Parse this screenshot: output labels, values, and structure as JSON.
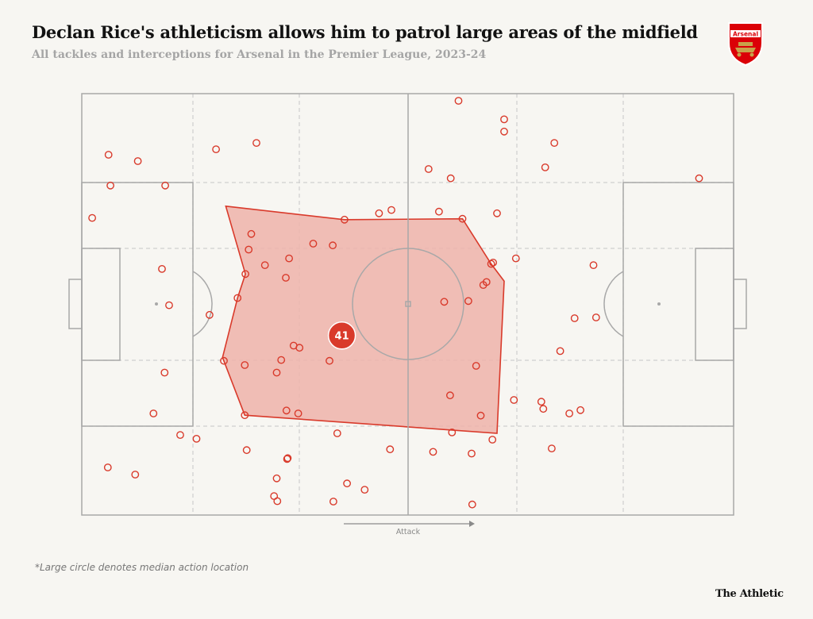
{
  "title": "Declan Rice's athleticism allows him to patrol large areas of the midfield",
  "subtitle": "All tackles and interceptions for Arsenal in the Premier League, 2023-24",
  "footnote": "*Large circle denotes median action location",
  "brand": "The Athletic",
  "crest": {
    "label": "Arsenal",
    "color": "#db0007"
  },
  "colors": {
    "points": "#d93a2b",
    "hull_fill": "#efb3aa",
    "median": "#d93a2b",
    "pitch_lines": "#a8a8a8",
    "zones": "#cfcfcf"
  },
  "chart_data": {
    "type": "scatter",
    "xlim": [
      0,
      100
    ],
    "ylim": [
      0,
      100
    ],
    "direction_label": "Attack",
    "median": {
      "x": 39.9,
      "y": 42.6,
      "label": "41"
    },
    "points": [
      [
        57.8,
        98.3
      ],
      [
        64.8,
        93.9
      ],
      [
        64.8,
        91.0
      ],
      [
        72.5,
        88.3
      ],
      [
        26.8,
        88.3
      ],
      [
        20.6,
        86.8
      ],
      [
        4.1,
        85.5
      ],
      [
        8.6,
        84.0
      ],
      [
        71.1,
        82.5
      ],
      [
        53.2,
        82.1
      ],
      [
        56.6,
        79.9
      ],
      [
        94.7,
        79.9
      ],
      [
        4.4,
        78.2
      ],
      [
        12.8,
        78.2
      ],
      [
        47.5,
        72.4
      ],
      [
        45.6,
        71.6
      ],
      [
        54.8,
        72.0
      ],
      [
        63.7,
        71.6
      ],
      [
        1.6,
        70.5
      ],
      [
        40.3,
        70.1
      ],
      [
        58.4,
        70.3
      ],
      [
        26.0,
        66.7
      ],
      [
        35.5,
        64.4
      ],
      [
        38.5,
        64.0
      ],
      [
        25.6,
        63.0
      ],
      [
        31.8,
        60.9
      ],
      [
        66.6,
        60.9
      ],
      [
        63.1,
        59.9
      ],
      [
        62.8,
        59.6
      ],
      [
        28.1,
        59.3
      ],
      [
        12.3,
        58.4
      ],
      [
        25.1,
        57.2
      ],
      [
        31.3,
        56.3
      ],
      [
        78.5,
        59.3
      ],
      [
        62.1,
        55.3
      ],
      [
        61.6,
        54.6
      ],
      [
        23.9,
        51.5
      ],
      [
        13.4,
        49.8
      ],
      [
        55.6,
        50.6
      ],
      [
        59.3,
        50.8
      ],
      [
        19.6,
        47.5
      ],
      [
        75.6,
        46.7
      ],
      [
        78.9,
        46.9
      ],
      [
        32.5,
        40.2
      ],
      [
        33.4,
        39.7
      ],
      [
        73.4,
        38.9
      ],
      [
        21.8,
        36.6
      ],
      [
        30.6,
        36.8
      ],
      [
        25.0,
        35.6
      ],
      [
        38.0,
        36.6
      ],
      [
        60.5,
        35.4
      ],
      [
        29.9,
        33.8
      ],
      [
        12.7,
        33.8
      ],
      [
        56.5,
        28.4
      ],
      [
        66.3,
        27.3
      ],
      [
        70.5,
        26.9
      ],
      [
        70.8,
        25.2
      ],
      [
        74.8,
        24.1
      ],
      [
        76.5,
        24.9
      ],
      [
        61.2,
        23.6
      ],
      [
        39.2,
        19.4
      ],
      [
        33.2,
        24.1
      ],
      [
        31.4,
        24.8
      ],
      [
        11.0,
        24.1
      ],
      [
        25.0,
        23.7
      ],
      [
        56.8,
        19.6
      ],
      [
        15.1,
        19.0
      ],
      [
        17.6,
        18.1
      ],
      [
        63.0,
        17.9
      ],
      [
        47.3,
        15.6
      ],
      [
        25.3,
        15.4
      ],
      [
        53.9,
        15.0
      ],
      [
        59.8,
        14.6
      ],
      [
        72.1,
        15.8
      ],
      [
        31.6,
        13.5
      ],
      [
        31.5,
        13.3
      ],
      [
        4.0,
        11.3
      ],
      [
        8.2,
        9.6
      ],
      [
        29.9,
        8.7
      ],
      [
        40.7,
        7.5
      ],
      [
        43.4,
        6.0
      ],
      [
        29.5,
        4.5
      ],
      [
        30.0,
        3.3
      ],
      [
        38.6,
        3.2
      ],
      [
        59.9,
        2.5
      ]
    ],
    "hull": [
      [
        22.1,
        73.3
      ],
      [
        40.3,
        70.1
      ],
      [
        58.4,
        70.3
      ],
      [
        62.8,
        59.6
      ],
      [
        64.8,
        55.5
      ],
      [
        63.7,
        19.4
      ],
      [
        25.0,
        23.7
      ],
      [
        21.6,
        37.4
      ],
      [
        23.9,
        51.5
      ],
      [
        25.1,
        57.2
      ]
    ]
  }
}
